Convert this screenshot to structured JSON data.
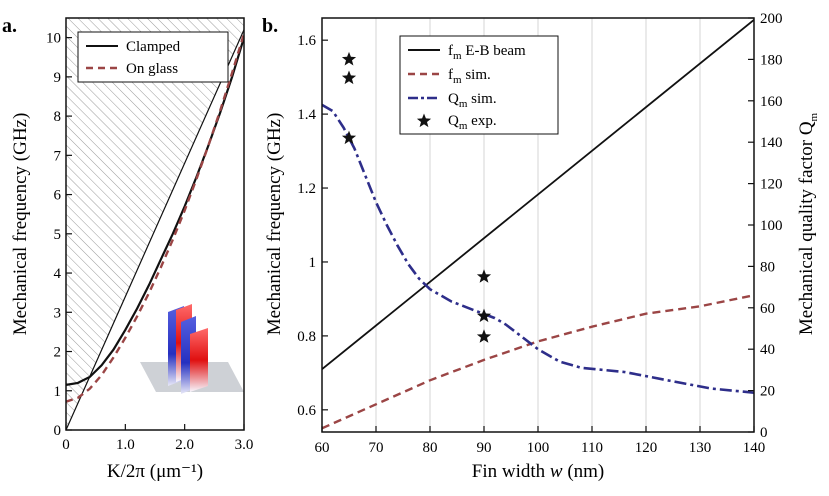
{
  "figure": {
    "panels": [
      "a.",
      "b."
    ]
  },
  "colors": {
    "black": "#111111",
    "glass": "#9b4545",
    "q_sim": "#2e2e8a",
    "hatch": "#9a9a9a",
    "grid": "#dcdcdc",
    "mode_red": "#e01010",
    "mode_blue": "#2630c0",
    "substrate": "#c9ccd2"
  },
  "chart_data": [
    {
      "panel": "a.",
      "type": "line",
      "xlabel": "K/2π (μm⁻¹)",
      "ylabel": "Mechanical frequency (GHz)",
      "xlim": [
        0,
        3.0
      ],
      "ylim": [
        0,
        10.5
      ],
      "xticks": [
        0,
        1.0,
        2.0,
        3.0
      ],
      "xtick_labels": [
        "0",
        "1.0",
        "2.0",
        "3.0"
      ],
      "yticks": [
        0,
        1,
        2,
        3,
        4,
        5,
        6,
        7,
        8,
        9,
        10
      ],
      "ytick_labels": [
        "0",
        "1",
        "2",
        "3",
        "4",
        "5",
        "6",
        "7",
        "8",
        "9",
        "10"
      ],
      "grid": false,
      "legend_placement": "top-right",
      "shaded_region": "hatched region above the light line f = 3.4 x",
      "light_line": {
        "x": [
          0,
          3.0
        ],
        "y": [
          0,
          10.2
        ]
      },
      "series": [
        {
          "name": "Clamped",
          "style": "solid",
          "color": "#111111",
          "x": [
            0,
            0.2,
            0.4,
            0.6,
            0.8,
            1.0,
            1.2,
            1.4,
            1.6,
            1.8,
            2.0,
            2.2,
            2.4,
            2.6,
            2.8,
            3.0
          ],
          "y": [
            1.15,
            1.2,
            1.35,
            1.65,
            2.05,
            2.55,
            3.1,
            3.7,
            4.35,
            5.0,
            5.7,
            6.45,
            7.25,
            8.1,
            9.0,
            10.0
          ]
        },
        {
          "name": "On glass",
          "style": "dashed",
          "color": "#9b4545",
          "x": [
            0,
            0.2,
            0.4,
            0.6,
            0.8,
            1.0,
            1.2,
            1.4,
            1.6,
            1.8,
            2.0,
            2.2,
            2.4,
            2.6,
            2.8,
            3.0
          ],
          "y": [
            0.72,
            0.82,
            1.05,
            1.4,
            1.85,
            2.35,
            2.9,
            3.5,
            4.15,
            4.85,
            5.6,
            6.4,
            7.25,
            8.15,
            9.1,
            10.1
          ]
        }
      ],
      "inset": "fin mechanical mode shape on substrate"
    },
    {
      "panel": "b.",
      "type": "line",
      "xlabel": "Fin width w (nm)",
      "xlabel_main": "Fin width ",
      "xlabel_var": "w",
      "xlabel_unit": " (nm)",
      "ylabel": "Mechanical frequency (GHz)",
      "y2label": "Mechanical quality factor Qm",
      "y2label_main": "Mechanical quality factor Q",
      "y2label_sub": "m",
      "xlim": [
        60,
        140
      ],
      "ylim": [
        0.54,
        1.66
      ],
      "y2lim": [
        0,
        200
      ],
      "xticks": [
        60,
        70,
        80,
        90,
        100,
        110,
        120,
        130,
        140
      ],
      "xtick_labels": [
        "60",
        "70",
        "80",
        "90",
        "100",
        "110",
        "120",
        "130",
        "140"
      ],
      "yticks": [
        0.6,
        0.8,
        1.0,
        1.2,
        1.4,
        1.6
      ],
      "ytick_labels": [
        "0.6",
        "0.8",
        "1",
        "1.2",
        "1.4",
        "1.6"
      ],
      "y2ticks": [
        0,
        20,
        40,
        60,
        80,
        100,
        120,
        140,
        160,
        180,
        200
      ],
      "y2tick_labels": [
        "0",
        "20",
        "40",
        "60",
        "80",
        "100",
        "120",
        "140",
        "160",
        "180",
        "200"
      ],
      "grid": "vertical",
      "legend_placement": "top-center",
      "series": [
        {
          "name": "fm E-B beam",
          "label_main": "f",
          "label_sub": "m",
          "label_rest": " E-B beam",
          "style": "solid",
          "color": "#111111",
          "axis": "left",
          "x": [
            60,
            140
          ],
          "y": [
            0.71,
            1.655
          ]
        },
        {
          "name": "fm sim.",
          "label_main": "f",
          "label_sub": "m",
          "label_rest": " sim.",
          "style": "dashed",
          "color": "#9b4545",
          "axis": "left",
          "x": [
            60,
            70,
            80,
            90,
            100,
            110,
            120,
            130,
            140
          ],
          "y": [
            0.55,
            0.615,
            0.68,
            0.735,
            0.785,
            0.825,
            0.86,
            0.88,
            0.91
          ]
        },
        {
          "name": "Qm sim.",
          "label_main": "Q",
          "label_sub": "m",
          "label_rest": " sim.",
          "style": "dashdot",
          "color": "#2e2e8a",
          "axis": "right",
          "x": [
            60,
            62,
            64,
            66,
            68,
            70,
            72,
            74,
            76,
            78,
            80,
            82,
            84,
            86,
            88,
            90,
            92,
            94,
            96,
            98,
            100,
            104,
            108,
            112,
            116,
            120,
            124,
            128,
            132,
            136,
            140
          ],
          "y": [
            158,
            155,
            147,
            137,
            124,
            111,
            100,
            90,
            81,
            74,
            69,
            66,
            63,
            61,
            59,
            57,
            55,
            52,
            48,
            44,
            40,
            34,
            31,
            30,
            29,
            27,
            25,
            23,
            21,
            20,
            19
          ]
        },
        {
          "name": "Qm exp.",
          "label_main": "Q",
          "label_sub": "m",
          "label_rest": " exp.",
          "style": "star-markers",
          "color": "#111111",
          "axis": "right",
          "x": [
            65,
            65,
            65,
            90,
            90,
            90
          ],
          "y": [
            180,
            171,
            142,
            75,
            56,
            46
          ]
        }
      ]
    }
  ]
}
